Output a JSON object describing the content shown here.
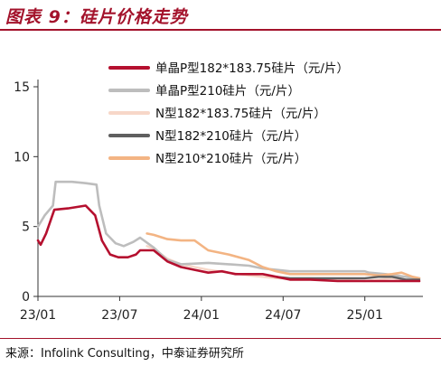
{
  "figure": {
    "title": "图表 9：硅片价格走势",
    "source": "来源：Infolink Consulting，中泰证券研究所"
  },
  "chart_data": {
    "type": "line",
    "title": "图表 9：硅片价格走势",
    "xlabel": "",
    "ylabel": "",
    "ylim": [
      0,
      15
    ],
    "xlim": [
      0,
      28
    ],
    "yticks": [
      "0",
      "5",
      "10",
      "15"
    ],
    "xticks": [
      {
        "label": "23/01",
        "x": 0
      },
      {
        "label": "23/07",
        "x": 6
      },
      {
        "label": "24/01",
        "x": 12
      },
      {
        "label": "24/07",
        "x": 18
      },
      {
        "label": "25/01",
        "x": 24
      }
    ],
    "legend_position": "top-right",
    "series": [
      {
        "name": "单晶P型182*183.75硅片（元/片）",
        "color": "#b5102f",
        "width": 2.6,
        "x": [
          0,
          0.2,
          0.6,
          1.2,
          2.2,
          3.5,
          4.2,
          4.7,
          5.3,
          5.9,
          6.6,
          7.2,
          7.5,
          8.5,
          9.5,
          10.5,
          11.5,
          12.5,
          13.5,
          14.5,
          16.5,
          17.5,
          18.5,
          20,
          22,
          24,
          25,
          26.5,
          27.5,
          28
        ],
        "y": [
          4.0,
          3.7,
          4.5,
          6.2,
          6.3,
          6.5,
          5.8,
          4.0,
          3.0,
          2.8,
          2.8,
          3.0,
          3.3,
          3.3,
          2.5,
          2.1,
          1.9,
          1.7,
          1.8,
          1.6,
          1.6,
          1.4,
          1.2,
          1.2,
          1.1,
          1.1,
          1.1,
          1.1,
          1.1,
          1.1
        ]
      },
      {
        "name": "单晶P型210硅片（元/片）",
        "color": "#bdbdbd",
        "width": 2.6,
        "x": [
          0,
          0.5,
          1.1,
          1.3,
          2.5,
          3.5,
          4.3,
          4.5,
          5.0,
          5.7,
          6.3,
          7.0,
          7.5,
          8.5,
          9.5,
          10.5,
          12.5,
          14,
          15.5,
          16.5,
          17.5,
          18.5,
          20,
          22,
          24,
          24.3,
          25.5,
          27,
          28
        ],
        "y": [
          5.0,
          5.8,
          6.5,
          8.2,
          8.2,
          8.1,
          8.0,
          6.5,
          4.5,
          3.8,
          3.6,
          3.9,
          4.2,
          3.5,
          2.6,
          2.3,
          2.4,
          2.3,
          2.2,
          2.0,
          1.9,
          1.8,
          1.8,
          1.8,
          1.8,
          1.7,
          1.6,
          1.4,
          1.3
        ]
      },
      {
        "name": "N型182*183.75硅片（元/片）",
        "color": "#f7d7c8",
        "width": 2.4,
        "x": [
          8,
          8.5,
          9.5,
          10.5,
          11.5,
          12.5,
          14,
          15.5,
          16.5,
          17.5,
          18.5,
          20,
          22,
          24,
          25,
          26,
          27,
          28
        ],
        "y": [
          3.6,
          3.4,
          2.7,
          2.3,
          2.1,
          1.9,
          1.7,
          1.5,
          1.4,
          1.3,
          1.3,
          1.3,
          1.2,
          1.1,
          1.2,
          1.3,
          1.2,
          1.1
        ]
      },
      {
        "name": "N型182*210硅片（元/片）",
        "color": "#5f5f5f",
        "width": 2.4,
        "x": [
          17.5,
          18.5,
          20,
          22,
          24,
          25,
          26,
          27,
          28
        ],
        "y": [
          1.4,
          1.3,
          1.3,
          1.3,
          1.3,
          1.4,
          1.4,
          1.2,
          1.2
        ]
      },
      {
        "name": "N型210*210硅片（元/片）",
        "color": "#f3b483",
        "width": 2.6,
        "x": [
          8,
          8.5,
          9.5,
          10.5,
          11.5,
          12.5,
          14,
          15.5,
          16.5,
          17.5,
          18.5,
          20,
          22,
          24,
          25,
          26,
          26.7,
          27.5,
          28
        ],
        "y": [
          4.5,
          4.4,
          4.1,
          4.0,
          4.0,
          3.3,
          3.0,
          2.6,
          2.1,
          1.8,
          1.6,
          1.6,
          1.6,
          1.6,
          1.5,
          1.6,
          1.7,
          1.4,
          1.3
        ]
      }
    ]
  }
}
